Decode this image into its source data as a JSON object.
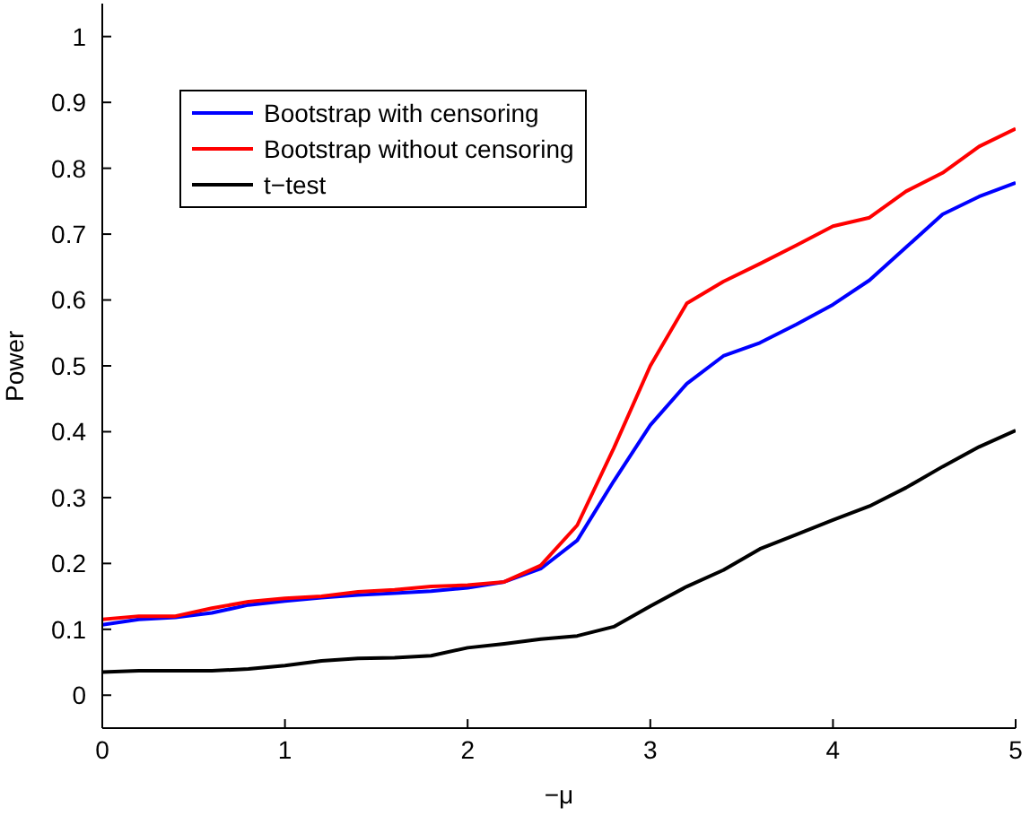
{
  "chart_data": {
    "type": "line",
    "xlabel": "−μ",
    "ylabel": "Power",
    "x": [
      0,
      0.2,
      0.4,
      0.6,
      0.8,
      1,
      1.2,
      1.4,
      1.6,
      1.8,
      2,
      2.2,
      2.4,
      2.6,
      2.8,
      3,
      3.2,
      3.4,
      3.6,
      3.8,
      4,
      4.2,
      4.4,
      4.6,
      4.8,
      5
    ],
    "series": [
      {
        "name": "Bootstrap with censoring",
        "color": "#0000ff",
        "values": [
          0.107,
          0.115,
          0.118,
          0.125,
          0.137,
          0.143,
          0.148,
          0.152,
          0.155,
          0.158,
          0.163,
          0.172,
          0.192,
          0.235,
          0.325,
          0.41,
          0.473,
          0.515,
          0.535,
          0.563,
          0.593,
          0.63,
          0.68,
          0.73,
          0.757,
          0.778
        ]
      },
      {
        "name": "Bootstrap without censoring",
        "color": "#ff0000",
        "values": [
          0.115,
          0.12,
          0.12,
          0.132,
          0.142,
          0.147,
          0.15,
          0.157,
          0.16,
          0.165,
          0.167,
          0.172,
          0.197,
          0.258,
          0.375,
          0.5,
          0.595,
          0.628,
          0.655,
          0.683,
          0.712,
          0.725,
          0.765,
          0.793,
          0.833,
          0.86
        ]
      },
      {
        "name": "t−test",
        "color": "#000000",
        "values": [
          0.035,
          0.037,
          0.037,
          0.037,
          0.04,
          0.045,
          0.052,
          0.056,
          0.057,
          0.06,
          0.072,
          0.078,
          0.085,
          0.09,
          0.104,
          0.135,
          0.165,
          0.19,
          0.222,
          0.244,
          0.266,
          0.287,
          0.315,
          0.347,
          0.377,
          0.402
        ]
      }
    ],
    "xlim": [
      0,
      5
    ],
    "xticks": [
      0,
      1,
      2,
      3,
      4,
      5
    ],
    "ylim": [
      -0.05,
      1.05
    ],
    "yticks": [
      0,
      0.1,
      0.2,
      0.3,
      0.4,
      0.5,
      0.6,
      0.7,
      0.8,
      0.9,
      1
    ],
    "legend": "top left",
    "grid": false,
    "marker": "none",
    "line_style": "solid"
  }
}
